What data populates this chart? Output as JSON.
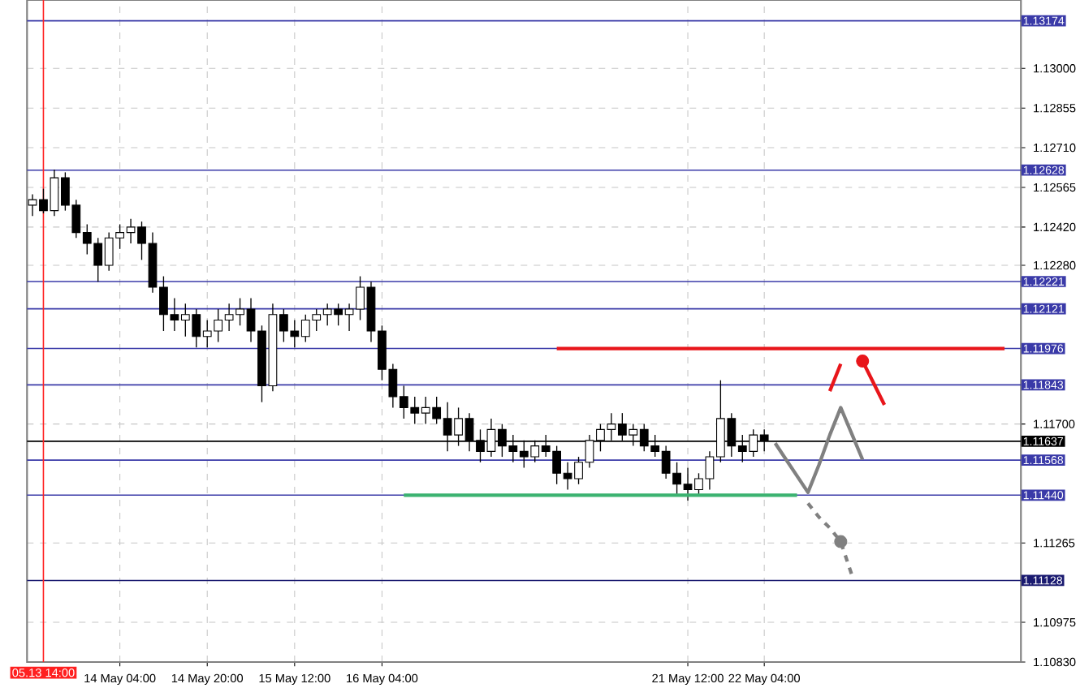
{
  "chart_data": {
    "type": "candlestick",
    "color": "#000000",
    "categories": [
      null,
      "05.13 14:00",
      null,
      null,
      null,
      null,
      null,
      null,
      "14 May 04:00",
      null,
      null,
      null,
      null,
      null,
      null,
      null,
      "14 May 20:00",
      null,
      null,
      null,
      null,
      null,
      null,
      null,
      "15 May 12:00",
      null,
      null,
      null,
      null,
      null,
      null,
      null,
      "16 May 04:00",
      null,
      null,
      null,
      null,
      null,
      null,
      null,
      null,
      null,
      null,
      null,
      null,
      null,
      null,
      null,
      null,
      null,
      null,
      null,
      null,
      null,
      null,
      null,
      null,
      null,
      null,
      null,
      "21 May 12:00",
      null,
      null,
      null,
      null,
      null,
      null,
      "22 May 04:00",
      null,
      null,
      null,
      null,
      null,
      null,
      null,
      null,
      null,
      null,
      null,
      null,
      null,
      null,
      null,
      null,
      null,
      null,
      null,
      null,
      null,
      null,
      null
    ],
    "ohlc": [
      [
        1.125,
        1.1254,
        1.1246,
        1.1252
      ],
      [
        1.1252,
        1.1256,
        1.1247,
        1.1248
      ],
      [
        1.1248,
        1.1263,
        1.1246,
        1.126
      ],
      [
        1.126,
        1.1262,
        1.1248,
        1.125
      ],
      [
        1.125,
        1.1252,
        1.1238,
        1.124
      ],
      [
        1.124,
        1.1243,
        1.1232,
        1.1236
      ],
      [
        1.1236,
        1.1238,
        1.1222,
        1.1228
      ],
      [
        1.1228,
        1.124,
        1.1226,
        1.1238
      ],
      [
        1.1238,
        1.1243,
        1.1234,
        1.124
      ],
      [
        1.124,
        1.1245,
        1.1236,
        1.1242
      ],
      [
        1.1242,
        1.1244,
        1.123,
        1.1236
      ],
      [
        1.1236,
        1.124,
        1.1218,
        1.122
      ],
      [
        1.122,
        1.1224,
        1.1204,
        1.121
      ],
      [
        1.121,
        1.1216,
        1.1204,
        1.1208
      ],
      [
        1.1208,
        1.1214,
        1.1202,
        1.121
      ],
      [
        1.121,
        1.1212,
        1.1198,
        1.1202
      ],
      [
        1.1202,
        1.1208,
        1.1198,
        1.1204
      ],
      [
        1.1204,
        1.1212,
        1.12,
        1.1208
      ],
      [
        1.1208,
        1.1214,
        1.1204,
        1.121
      ],
      [
        1.121,
        1.1216,
        1.1206,
        1.1212
      ],
      [
        1.1212,
        1.1216,
        1.12,
        1.1204
      ],
      [
        1.1204,
        1.1206,
        1.1178,
        1.1184
      ],
      [
        1.1184,
        1.1214,
        1.1182,
        1.121
      ],
      [
        1.121,
        1.1212,
        1.12,
        1.1204
      ],
      [
        1.1204,
        1.1208,
        1.1198,
        1.1202
      ],
      [
        1.1202,
        1.121,
        1.12,
        1.1208
      ],
      [
        1.1208,
        1.1212,
        1.1204,
        1.121
      ],
      [
        1.121,
        1.1214,
        1.1206,
        1.1212
      ],
      [
        1.1212,
        1.1214,
        1.1206,
        1.121
      ],
      [
        1.121,
        1.1214,
        1.1204,
        1.1212
      ],
      [
        1.1212,
        1.1224,
        1.1208,
        1.122
      ],
      [
        1.122,
        1.1222,
        1.12,
        1.1204
      ],
      [
        1.1204,
        1.1206,
        1.1186,
        1.119
      ],
      [
        1.119,
        1.1192,
        1.1176,
        1.118
      ],
      [
        1.118,
        1.1184,
        1.1172,
        1.1176
      ],
      [
        1.1176,
        1.118,
        1.117,
        1.1174
      ],
      [
        1.1174,
        1.118,
        1.117,
        1.1176
      ],
      [
        1.1176,
        1.118,
        1.117,
        1.1172
      ],
      [
        1.1172,
        1.1178,
        1.116,
        1.1166
      ],
      [
        1.1166,
        1.1176,
        1.1162,
        1.1172
      ],
      [
        1.1172,
        1.1174,
        1.116,
        1.1164
      ],
      [
        1.1164,
        1.1168,
        1.1156,
        1.116
      ],
      [
        1.116,
        1.1172,
        1.1158,
        1.1168
      ],
      [
        1.1168,
        1.117,
        1.1158,
        1.1162
      ],
      [
        1.1162,
        1.1166,
        1.1156,
        1.116
      ],
      [
        1.116,
        1.1164,
        1.1154,
        1.1158
      ],
      [
        1.1158,
        1.1164,
        1.1156,
        1.1162
      ],
      [
        1.1162,
        1.1166,
        1.1158,
        1.116
      ],
      [
        1.116,
        1.1162,
        1.1148,
        1.1152
      ],
      [
        1.1152,
        1.1156,
        1.1146,
        1.115
      ],
      [
        1.115,
        1.1158,
        1.1148,
        1.1156
      ],
      [
        1.1156,
        1.1166,
        1.1154,
        1.1164
      ],
      [
        1.1164,
        1.117,
        1.116,
        1.1168
      ],
      [
        1.1168,
        1.1174,
        1.1164,
        1.117
      ],
      [
        1.117,
        1.1174,
        1.1164,
        1.1166
      ],
      [
        1.1166,
        1.117,
        1.1162,
        1.1168
      ],
      [
        1.1168,
        1.117,
        1.116,
        1.1162
      ],
      [
        1.1162,
        1.1166,
        1.1158,
        1.116
      ],
      [
        1.116,
        1.1162,
        1.115,
        1.1152
      ],
      [
        1.1152,
        1.1156,
        1.1144,
        1.1148
      ],
      [
        1.1148,
        1.1154,
        1.1142,
        1.1146
      ],
      [
        1.1146,
        1.1152,
        1.1144,
        1.115
      ],
      [
        1.115,
        1.116,
        1.1146,
        1.1158
      ],
      [
        1.1158,
        1.1186,
        1.1156,
        1.1172
      ],
      [
        1.1172,
        1.1174,
        1.1158,
        1.1162
      ],
      [
        1.1162,
        1.1166,
        1.1156,
        1.116
      ],
      [
        1.116,
        1.1168,
        1.1158,
        1.1166
      ],
      [
        1.1166,
        1.1168,
        1.116,
        1.1164
      ],
      null,
      null,
      null,
      null,
      null,
      null,
      null,
      null,
      null,
      null,
      null,
      null,
      null,
      null,
      null,
      null,
      null,
      null,
      null,
      null,
      null,
      null,
      null
    ],
    "series": [
      {
        "type": "line",
        "color": "#e8161b",
        "line_style": "solid",
        "values": [
          null,
          null,
          null,
          null,
          null,
          null,
          null,
          null,
          null,
          null,
          null,
          null,
          null,
          null,
          null,
          null,
          null,
          null,
          null,
          null,
          null,
          null,
          null,
          null,
          null,
          null,
          null,
          null,
          null,
          null,
          null,
          null,
          null,
          null,
          null,
          null,
          null,
          null,
          null,
          null,
          null,
          null,
          null,
          null,
          null,
          null,
          null,
          null,
          1.11976,
          1.11976,
          1.11976,
          1.11976,
          1.11976,
          1.11976,
          1.11976,
          1.11976,
          1.11976,
          1.11976,
          1.11976,
          1.11976,
          1.11976,
          1.11976,
          1.11976,
          1.11976,
          1.11976,
          1.11976,
          1.11976,
          1.11976,
          1.11976,
          1.11976,
          1.11976,
          1.11976,
          1.11976,
          1.11976,
          1.11976,
          1.11976,
          1.11976,
          1.11976,
          1.11976,
          1.11976,
          1.11976,
          1.11976,
          1.11976,
          1.11976,
          1.11976,
          1.11976,
          1.11976,
          1.11976,
          1.11976,
          1.11976,
          null
        ]
      },
      {
        "type": "line",
        "color": "#3cb371",
        "line_style": "solid",
        "values": [
          null,
          null,
          null,
          null,
          null,
          null,
          null,
          null,
          null,
          null,
          null,
          null,
          null,
          null,
          null,
          null,
          null,
          null,
          null,
          null,
          null,
          null,
          null,
          null,
          null,
          null,
          null,
          null,
          null,
          null,
          null,
          null,
          null,
          null,
          1.1144,
          1.1144,
          1.1144,
          1.1144,
          1.1144,
          1.1144,
          1.1144,
          1.1144,
          1.1144,
          1.1144,
          1.1144,
          1.1144,
          1.1144,
          1.1144,
          1.1144,
          1.1144,
          1.1144,
          1.1144,
          1.1144,
          1.1144,
          1.1144,
          1.1144,
          1.1144,
          1.1144,
          1.1144,
          1.1144,
          1.1144,
          1.1144,
          1.1144,
          1.1144,
          1.1144,
          1.1144,
          1.1144,
          1.1144,
          1.1144,
          1.1144,
          1.1144,
          null,
          null,
          null,
          null,
          null,
          null,
          null,
          null,
          null,
          null,
          null,
          null,
          null,
          null,
          null,
          null,
          null,
          null,
          null,
          null
        ]
      },
      {
        "type": "line",
        "color": "#808080",
        "line_style": "solid",
        "values": [
          null,
          null,
          null,
          null,
          null,
          null,
          null,
          null,
          null,
          null,
          null,
          null,
          null,
          null,
          null,
          null,
          null,
          null,
          null,
          null,
          null,
          null,
          null,
          null,
          null,
          null,
          null,
          null,
          null,
          null,
          null,
          null,
          null,
          null,
          null,
          null,
          null,
          null,
          null,
          null,
          null,
          null,
          null,
          null,
          null,
          null,
          null,
          null,
          null,
          null,
          null,
          null,
          null,
          null,
          null,
          null,
          null,
          null,
          null,
          null,
          null,
          null,
          null,
          null,
          null,
          null,
          null,
          null,
          1.1163,
          1.1157,
          1.1151,
          1.1145,
          1.1155,
          1.1166,
          1.1176,
          1.11665,
          1.1157,
          null,
          null,
          null,
          null,
          null,
          null,
          null,
          null,
          null,
          null,
          null,
          null,
          null,
          null
        ]
      },
      {
        "type": "line",
        "color": "#808080",
        "line_style": "dashed",
        "values": [
          null,
          null,
          null,
          null,
          null,
          null,
          null,
          null,
          null,
          null,
          null,
          null,
          null,
          null,
          null,
          null,
          null,
          null,
          null,
          null,
          null,
          null,
          null,
          null,
          null,
          null,
          null,
          null,
          null,
          null,
          null,
          null,
          null,
          null,
          null,
          null,
          null,
          null,
          null,
          null,
          null,
          null,
          null,
          null,
          null,
          null,
          null,
          null,
          null,
          null,
          null,
          null,
          null,
          null,
          null,
          null,
          null,
          null,
          null,
          null,
          null,
          null,
          null,
          null,
          null,
          null,
          null,
          null,
          null,
          null,
          null,
          1.1141,
          1.1136,
          1.1132,
          1.1127,
          1.1115,
          null,
          null,
          null,
          null,
          null,
          null,
          null,
          null,
          null,
          null,
          null,
          null,
          null,
          null,
          null
        ]
      },
      {
        "type": "scatter",
        "color": "#808080",
        "marker": "circle",
        "values": [
          null,
          null,
          null,
          null,
          null,
          null,
          null,
          null,
          null,
          null,
          null,
          null,
          null,
          null,
          null,
          null,
          null,
          null,
          null,
          null,
          null,
          null,
          null,
          null,
          null,
          null,
          null,
          null,
          null,
          null,
          null,
          null,
          null,
          null,
          null,
          null,
          null,
          null,
          null,
          null,
          null,
          null,
          null,
          null,
          null,
          null,
          null,
          null,
          null,
          null,
          null,
          null,
          null,
          null,
          null,
          null,
          null,
          null,
          null,
          null,
          null,
          null,
          null,
          null,
          null,
          null,
          null,
          null,
          null,
          null,
          null,
          null,
          null,
          null,
          1.1127,
          null,
          null,
          null,
          null,
          null,
          null,
          null,
          null,
          null,
          null,
          null,
          null,
          null,
          null,
          null,
          null
        ]
      },
      {
        "type": "line",
        "color": "#e8161b",
        "line_style": "solid",
        "values": [
          null,
          null,
          null,
          null,
          null,
          null,
          null,
          null,
          null,
          null,
          null,
          null,
          null,
          null,
          null,
          null,
          null,
          null,
          null,
          null,
          null,
          null,
          null,
          null,
          null,
          null,
          null,
          null,
          null,
          null,
          null,
          null,
          null,
          null,
          null,
          null,
          null,
          null,
          null,
          null,
          null,
          null,
          null,
          null,
          null,
          null,
          null,
          null,
          null,
          null,
          null,
          null,
          null,
          null,
          null,
          null,
          null,
          null,
          null,
          null,
          null,
          null,
          null,
          null,
          null,
          null,
          null,
          null,
          null,
          null,
          null,
          null,
          null,
          1.1182,
          1.1192,
          null,
          null,
          null,
          null,
          null,
          null,
          null,
          null,
          null,
          null,
          null,
          null,
          null,
          null,
          null,
          null
        ]
      },
      {
        "type": "line",
        "color": "#e8161b",
        "line_style": "solid",
        "values": [
          null,
          null,
          null,
          null,
          null,
          null,
          null,
          null,
          null,
          null,
          null,
          null,
          null,
          null,
          null,
          null,
          null,
          null,
          null,
          null,
          null,
          null,
          null,
          null,
          null,
          null,
          null,
          null,
          null,
          null,
          null,
          null,
          null,
          null,
          null,
          null,
          null,
          null,
          null,
          null,
          null,
          null,
          null,
          null,
          null,
          null,
          null,
          null,
          null,
          null,
          null,
          null,
          null,
          null,
          null,
          null,
          null,
          null,
          null,
          null,
          null,
          null,
          null,
          null,
          null,
          null,
          null,
          null,
          null,
          null,
          null,
          null,
          null,
          null,
          null,
          null,
          1.1193,
          1.1185,
          1.1177,
          null,
          null,
          null,
          null,
          null,
          null,
          null,
          null,
          null,
          null,
          null,
          null
        ]
      },
      {
        "type": "scatter",
        "color": "#e8161b",
        "marker": "circle",
        "values": [
          null,
          null,
          null,
          null,
          null,
          null,
          null,
          null,
          null,
          null,
          null,
          null,
          null,
          null,
          null,
          null,
          null,
          null,
          null,
          null,
          null,
          null,
          null,
          null,
          null,
          null,
          null,
          null,
          null,
          null,
          null,
          null,
          null,
          null,
          null,
          null,
          null,
          null,
          null,
          null,
          null,
          null,
          null,
          null,
          null,
          null,
          null,
          null,
          null,
          null,
          null,
          null,
          null,
          null,
          null,
          null,
          null,
          null,
          null,
          null,
          null,
          null,
          null,
          null,
          null,
          null,
          null,
          null,
          null,
          null,
          null,
          null,
          null,
          null,
          null,
          null,
          1.1193,
          null,
          null,
          null,
          null,
          null,
          null,
          null,
          null,
          null,
          null,
          null,
          null,
          null,
          null
        ]
      }
    ],
    "ylim": [
      1.1083,
      1.1325
    ],
    "yticks": [
      {
        "value": 1.1083,
        "label": "1.10830"
      },
      {
        "value": 1.10975,
        "label": "1.10975"
      },
      {
        "value": 1.11265,
        "label": "1.11265"
      },
      {
        "value": 1.117,
        "label": "1.11700"
      },
      {
        "value": 1.1228,
        "label": "1.12280"
      },
      {
        "value": 1.1242,
        "label": "1.12420"
      },
      {
        "value": 1.12565,
        "label": "1.12565"
      },
      {
        "value": 1.1271,
        "label": "1.12710"
      },
      {
        "value": 1.12855,
        "label": "1.12855"
      },
      {
        "value": 1.13,
        "label": "1.13000"
      }
    ],
    "ref_lines": [
      {
        "axis": "y",
        "value": 1.13174,
        "label": "1.13174",
        "color": "#3a3aa8"
      },
      {
        "axis": "y",
        "value": 1.12628,
        "label": "1.12628",
        "color": "#3a3aa8"
      },
      {
        "axis": "y",
        "value": 1.12221,
        "label": "1.12221",
        "color": "#3a3aa8"
      },
      {
        "axis": "y",
        "value": 1.12121,
        "label": "1.12121",
        "color": "#3a3aa8"
      },
      {
        "axis": "y",
        "value": 1.11976,
        "label": "1.11976",
        "color": "#3a3aa8"
      },
      {
        "axis": "y",
        "value": 1.11843,
        "label": "1.11843",
        "color": "#3a3aa8"
      },
      {
        "axis": "y",
        "value": 1.11637,
        "label": "1.11637",
        "color": "#000000"
      },
      {
        "axis": "y",
        "value": 1.11568,
        "label": "1.11568",
        "color": "#3a3aa8"
      },
      {
        "axis": "y",
        "value": 1.1144,
        "label": "1.11440",
        "color": "#3a3aa8"
      },
      {
        "axis": "y",
        "value": 1.11128,
        "label": "1.11128",
        "color": "#1a1a70"
      },
      {
        "axis": "x",
        "value": "05.13 14:00",
        "color": "#ff2020"
      }
    ],
    "grid": true
  }
}
